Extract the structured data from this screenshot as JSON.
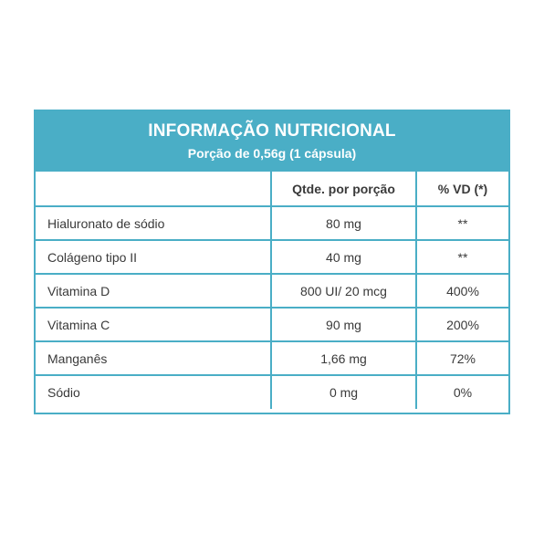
{
  "header": {
    "title": "INFORMAÇÃO NUTRICIONAL",
    "subtitle": "Porção de 0,56g (1 cápsula)"
  },
  "columns": {
    "name": "",
    "quantity": "Qtde. por porção",
    "vd": "% VD (*)"
  },
  "rows": [
    {
      "name": "Hialuronato de sódio",
      "quantity": "80 mg",
      "vd": "**"
    },
    {
      "name": "Colágeno tipo II",
      "quantity": "40 mg",
      "vd": "**"
    },
    {
      "name": "Vitamina D",
      "quantity": "800 UI/ 20 mcg",
      "vd": "400%"
    },
    {
      "name": "Vitamina C",
      "quantity": "90 mg",
      "vd": "200%"
    },
    {
      "name": "Manganês",
      "quantity": "1,66 mg",
      "vd": "72%"
    },
    {
      "name": "Sódio",
      "quantity": "0 mg",
      "vd": "0%"
    }
  ],
  "colors": {
    "accent": "#4aaec6",
    "text": "#3a3a3a",
    "header_text": "#ffffff"
  }
}
